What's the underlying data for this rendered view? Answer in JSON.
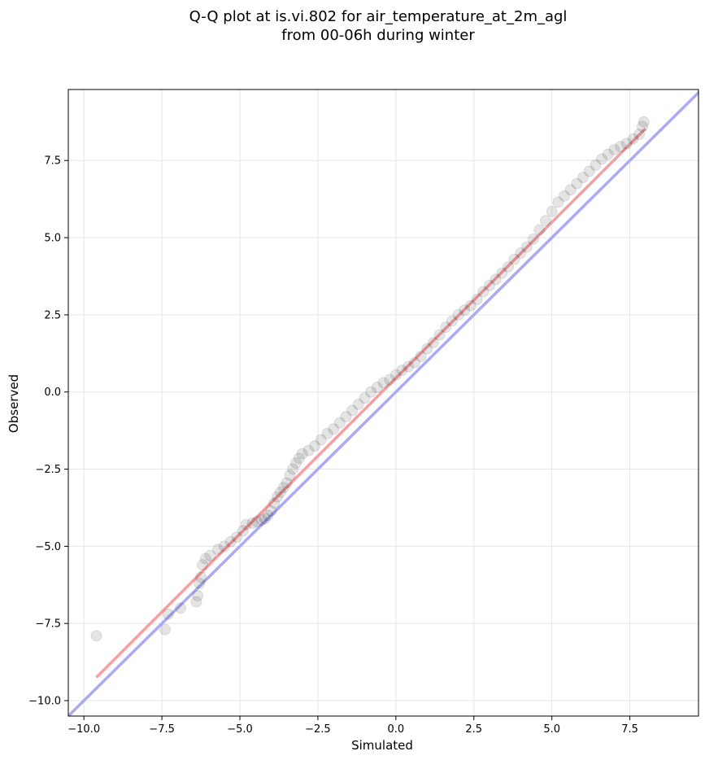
{
  "chart_data": {
    "type": "scatter",
    "title": "Q-Q plot at is.vi.802 for air_temperature_at_2m_agl",
    "subtitle": "from 00-06h during winter",
    "xlabel": "Simulated",
    "ylabel": "Observed",
    "xlim": [
      -10.5,
      9.7
    ],
    "ylim": [
      -10.5,
      9.8
    ],
    "x_ticks": [
      -10.0,
      -7.5,
      -5.0,
      -2.5,
      0.0,
      2.5,
      5.0,
      7.5
    ],
    "y_ticks": [
      -10.0,
      -7.5,
      -5.0,
      -2.5,
      0.0,
      2.5,
      5.0,
      7.5
    ],
    "x_tick_labels": [
      "−10.0",
      "−7.5",
      "−5.0",
      "−2.5",
      "0.0",
      "2.5",
      "5.0",
      "7.5"
    ],
    "y_tick_labels": [
      "−10.0",
      "−7.5",
      "−5.0",
      "−2.5",
      "0.0",
      "2.5",
      "5.0",
      "7.5"
    ],
    "grid": true,
    "reference_line": {
      "slope": 1,
      "intercept": 0,
      "color": "#aaaaf5"
    },
    "fit_line": {
      "x_range": [
        -9.6,
        8.0
      ],
      "slope": 1.01,
      "intercept": 0.45,
      "color": "#f5a0a0"
    },
    "point_color": "#000000",
    "series": [
      {
        "points": [
          [
            -9.6,
            -7.9
          ],
          [
            -7.4,
            -7.7
          ],
          [
            -7.3,
            -7.2
          ],
          [
            -6.9,
            -7.0
          ],
          [
            -6.4,
            -6.8
          ],
          [
            -6.35,
            -6.6
          ],
          [
            -6.3,
            -6.2
          ],
          [
            -6.25,
            -6.0
          ],
          [
            -6.2,
            -5.6
          ],
          [
            -6.1,
            -5.4
          ],
          [
            -5.95,
            -5.3
          ],
          [
            -5.7,
            -5.1
          ],
          [
            -5.5,
            -5.0
          ],
          [
            -5.3,
            -4.85
          ],
          [
            -5.1,
            -4.7
          ],
          [
            -4.9,
            -4.5
          ],
          [
            -4.8,
            -4.3
          ],
          [
            -4.6,
            -4.25
          ],
          [
            -4.45,
            -4.2
          ],
          [
            -4.3,
            -4.15
          ],
          [
            -4.2,
            -4.1
          ],
          [
            -4.1,
            -4.0
          ],
          [
            -4.0,
            -3.85
          ],
          [
            -3.9,
            -3.6
          ],
          [
            -3.8,
            -3.4
          ],
          [
            -3.7,
            -3.25
          ],
          [
            -3.6,
            -3.1
          ],
          [
            -3.5,
            -2.95
          ],
          [
            -3.4,
            -2.7
          ],
          [
            -3.3,
            -2.5
          ],
          [
            -3.2,
            -2.3
          ],
          [
            -3.1,
            -2.15
          ],
          [
            -3.0,
            -2.0
          ],
          [
            -2.8,
            -1.9
          ],
          [
            -2.6,
            -1.75
          ],
          [
            -2.4,
            -1.55
          ],
          [
            -2.2,
            -1.35
          ],
          [
            -2.0,
            -1.2
          ],
          [
            -1.8,
            -1.0
          ],
          [
            -1.6,
            -0.8
          ],
          [
            -1.4,
            -0.6
          ],
          [
            -1.2,
            -0.4
          ],
          [
            -1.0,
            -0.2
          ],
          [
            -0.8,
            0.0
          ],
          [
            -0.6,
            0.15
          ],
          [
            -0.4,
            0.3
          ],
          [
            -0.2,
            0.4
          ],
          [
            0.0,
            0.55
          ],
          [
            0.2,
            0.7
          ],
          [
            0.4,
            0.82
          ],
          [
            0.6,
            0.95
          ],
          [
            0.8,
            1.15
          ],
          [
            1.0,
            1.4
          ],
          [
            1.2,
            1.6
          ],
          [
            1.4,
            1.85
          ],
          [
            1.6,
            2.1
          ],
          [
            1.8,
            2.3
          ],
          [
            2.0,
            2.5
          ],
          [
            2.2,
            2.65
          ],
          [
            2.4,
            2.8
          ],
          [
            2.6,
            3.0
          ],
          [
            2.8,
            3.25
          ],
          [
            3.0,
            3.45
          ],
          [
            3.2,
            3.65
          ],
          [
            3.4,
            3.85
          ],
          [
            3.6,
            4.05
          ],
          [
            3.8,
            4.3
          ],
          [
            4.0,
            4.5
          ],
          [
            4.2,
            4.7
          ],
          [
            4.4,
            4.95
          ],
          [
            4.6,
            5.25
          ],
          [
            4.8,
            5.55
          ],
          [
            5.0,
            5.85
          ],
          [
            5.2,
            6.15
          ],
          [
            5.4,
            6.35
          ],
          [
            5.6,
            6.55
          ],
          [
            5.8,
            6.75
          ],
          [
            6.0,
            6.95
          ],
          [
            6.2,
            7.15
          ],
          [
            6.4,
            7.35
          ],
          [
            6.6,
            7.55
          ],
          [
            6.8,
            7.7
          ],
          [
            7.0,
            7.85
          ],
          [
            7.2,
            7.95
          ],
          [
            7.4,
            8.05
          ],
          [
            7.6,
            8.2
          ],
          [
            7.8,
            8.35
          ],
          [
            7.9,
            8.6
          ],
          [
            7.95,
            8.75
          ]
        ]
      }
    ]
  }
}
